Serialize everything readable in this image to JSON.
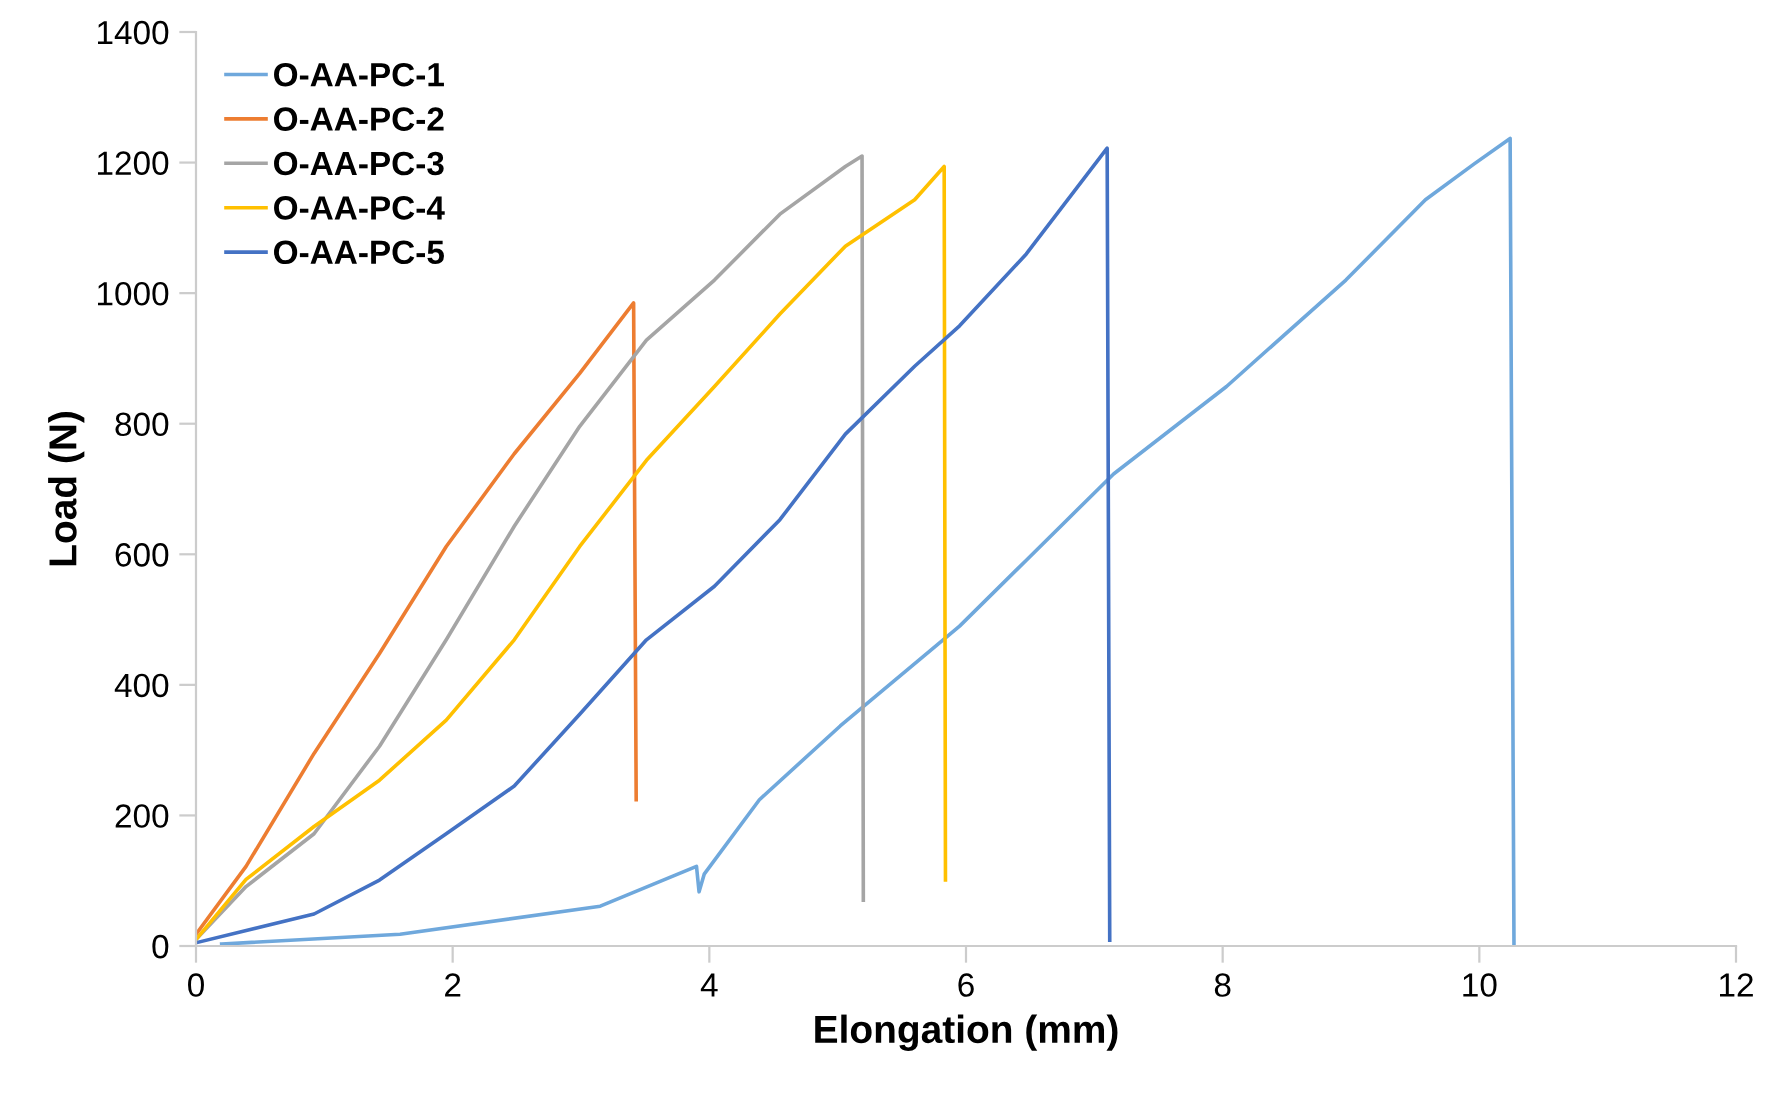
{
  "chart_data": {
    "type": "line",
    "xlabel": "Elongation (mm)",
    "ylabel": "Load (N)",
    "xlim": [
      0,
      12
    ],
    "xticks": [
      0,
      2,
      4,
      6,
      8,
      10,
      12
    ],
    "ylim": [
      0,
      1400
    ],
    "yticks": [
      0,
      200,
      400,
      600,
      800,
      1000,
      1200,
      1400
    ],
    "grid": false,
    "legend": "top left",
    "marker": "none",
    "line_style": "solid",
    "series": [
      {
        "name": "O-AA-PC-1",
        "color": "#6fa8dc",
        "x": [
          0.2,
          1.59,
          3.15,
          3.9,
          3.92,
          3.96,
          4.39,
          5.02,
          5.95,
          6.47,
          7.15,
          8.03,
          8.96,
          9.58,
          9.96,
          10.24,
          10.27
        ],
        "values": [
          3,
          18,
          61,
          122,
          83,
          110,
          224,
          337,
          490,
          591,
          723,
          857,
          1020,
          1143,
          1198,
          1237,
          0
        ]
      },
      {
        "name": "O-AA-PC-2",
        "color": "#ed7d31",
        "x": [
          0.0,
          0.39,
          0.92,
          1.43,
          1.95,
          2.48,
          2.99,
          3.41,
          3.43
        ],
        "values": [
          18,
          122,
          295,
          448,
          612,
          754,
          877,
          985,
          224
        ]
      },
      {
        "name": "O-AA-PC-3",
        "color": "#a5a5a5",
        "x": [
          0.0,
          0.39,
          0.92,
          1.43,
          1.95,
          2.48,
          2.99,
          3.51,
          4.04,
          4.55,
          5.06,
          5.19,
          5.2
        ],
        "values": [
          10,
          91,
          172,
          306,
          469,
          643,
          796,
          928,
          1020,
          1121,
          1194,
          1210,
          70
        ]
      },
      {
        "name": "O-AA-PC-4",
        "color": "#ffc000",
        "x": [
          0.0,
          0.39,
          0.92,
          1.43,
          1.95,
          2.48,
          2.99,
          3.51,
          4.04,
          4.55,
          5.06,
          5.6,
          5.83,
          5.84
        ],
        "values": [
          10,
          102,
          183,
          254,
          346,
          469,
          612,
          744,
          857,
          968,
          1072,
          1143,
          1194,
          101
        ]
      },
      {
        "name": "O-AA-PC-5",
        "color": "#4472c4",
        "x": [
          0.0,
          0.92,
          1.43,
          1.95,
          2.48,
          2.99,
          3.51,
          4.04,
          4.55,
          5.06,
          5.6,
          5.95,
          6.47,
          7.1,
          7.12
        ],
        "values": [
          5,
          49,
          101,
          172,
          245,
          355,
          469,
          551,
          653,
          784,
          888,
          950,
          1060,
          1222,
          9
        ]
      }
    ]
  }
}
